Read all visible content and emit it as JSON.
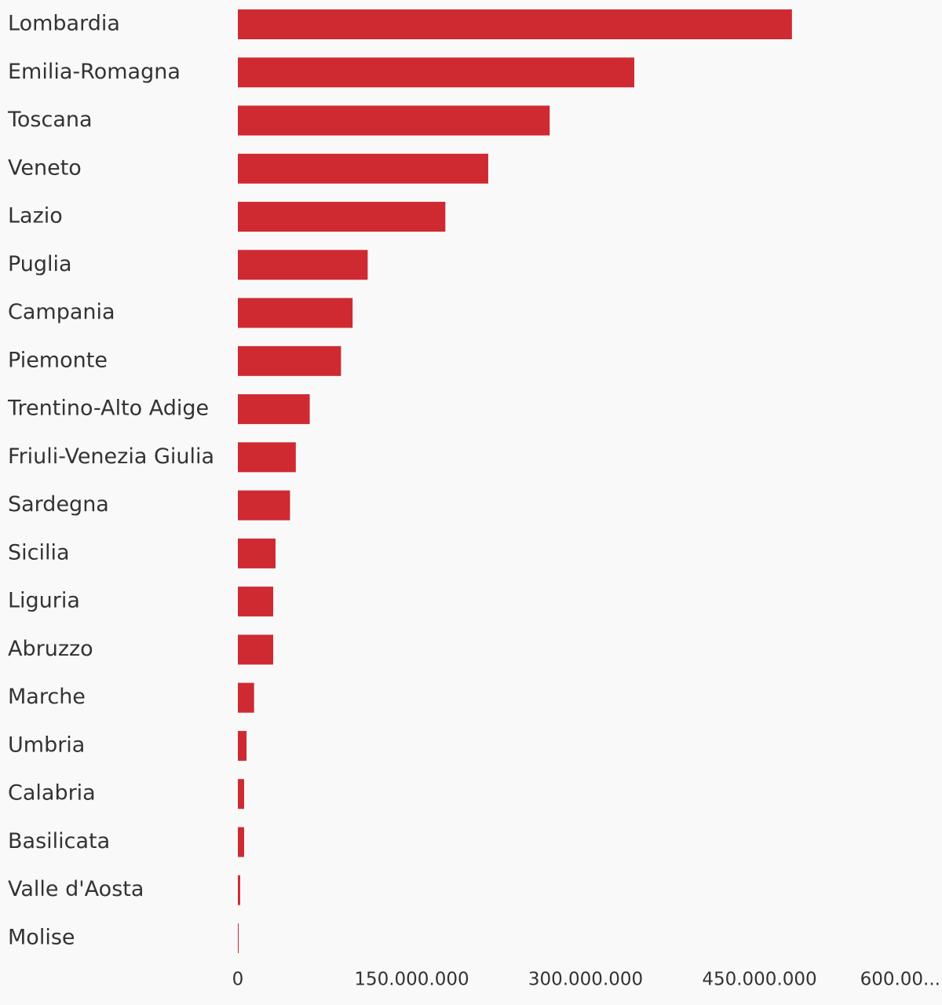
{
  "chart_data": {
    "type": "bar",
    "orientation": "horizontal",
    "categories": [
      "Lombardia",
      "Emilia-Romagna",
      "Toscana",
      "Veneto",
      "Lazio",
      "Puglia",
      "Campania",
      "Piemonte",
      "Trentino-Alto Adige",
      "Friuli-Venezia Giulia",
      "Sardegna",
      "Sicilia",
      "Liguria",
      "Abruzzo",
      "Marche",
      "Umbria",
      "Calabria",
      "Basilicata",
      "Valle d'Aosta",
      "Molise"
    ],
    "values": [
      478000000,
      342000000,
      269000000,
      216000000,
      179000000,
      112000000,
      99000000,
      89000000,
      62000000,
      50000000,
      45000000,
      32500000,
      30500000,
      30500000,
      14000000,
      7500000,
      5400000,
      5400000,
      2000000,
      700000
    ],
    "color": "#cf2a32",
    "xlim": [
      0,
      600000000
    ],
    "xticks": [
      0,
      {
        "value": 150000000,
        "label": "150.000.000"
      },
      {
        "value": 300000000,
        "label": "300.000.000"
      },
      {
        "value": 450000000,
        "label": "450.000.000"
      },
      {
        "value": 600000000,
        "label": "600.00..."
      }
    ],
    "grid": false
  }
}
